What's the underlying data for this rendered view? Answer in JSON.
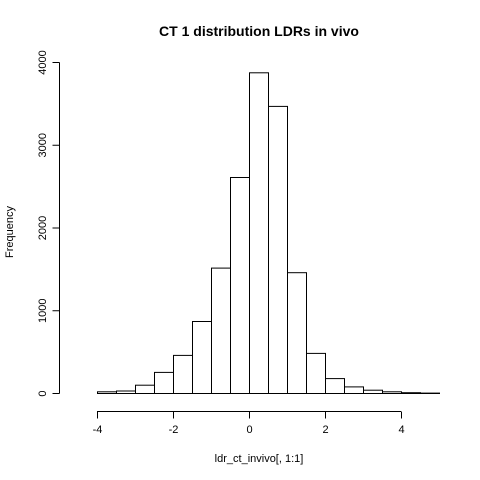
{
  "chart_data": {
    "type": "bar",
    "title": "CT 1 distribution LDRs in vivo",
    "xlabel": "ldr_ct_invivo[, 1:1]",
    "ylabel": "Frequency",
    "bin_width": 0.5,
    "bin_edges": [
      -4.0,
      -3.5,
      -3.0,
      -2.5,
      -2.0,
      -1.5,
      -1.0,
      -0.5,
      0.0,
      0.5,
      1.0,
      1.5,
      2.0,
      2.5,
      3.0,
      3.5,
      4.0,
      4.5,
      5.0
    ],
    "values": [
      20,
      30,
      100,
      255,
      460,
      870,
      1515,
      2610,
      3875,
      3470,
      1460,
      485,
      180,
      80,
      40,
      20,
      10,
      5
    ],
    "xlim": [
      -5.0,
      5.5
    ],
    "ylim": [
      0,
      4000
    ],
    "x_ticks": [
      -4,
      -2,
      0,
      2,
      4
    ],
    "y_ticks": [
      0,
      1000,
      2000,
      3000,
      4000
    ],
    "grid": false
  }
}
